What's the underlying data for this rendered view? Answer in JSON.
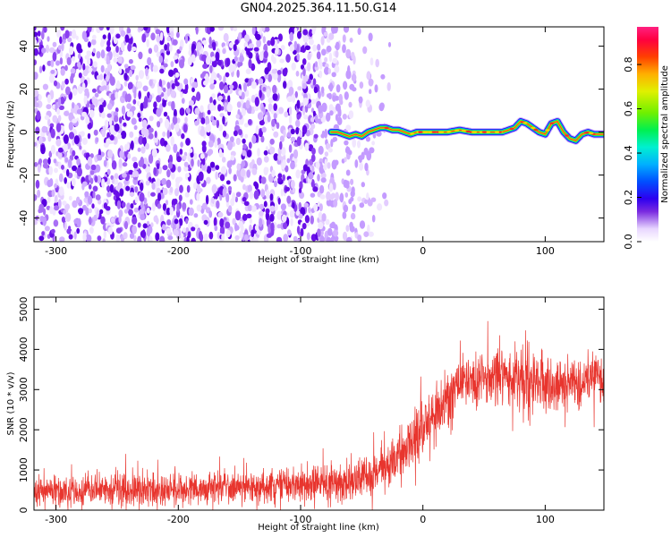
{
  "title": "GN04.2025.364.11.50.G14",
  "chart_data": [
    {
      "type": "heatmap",
      "xlabel": "Height of straight line (km)",
      "ylabel": "Frequency (Hz)",
      "xlim": [
        -318,
        148
      ],
      "ylim": [
        -51,
        49
      ],
      "xticks": [
        -300,
        -200,
        -100,
        0,
        100
      ],
      "xtick_labels": [
        "-300",
        "-200",
        "-100",
        "0",
        "100"
      ],
      "yticks": [
        -40,
        -20,
        0,
        20,
        40
      ],
      "ytick_labels": [
        "-40",
        "-20",
        "0",
        "20",
        "40"
      ],
      "colorbar": {
        "label": "Normalized spectral amplitude",
        "range": [
          0,
          0.97
        ],
        "ticks": [
          0.0,
          0.2,
          0.4,
          0.6,
          0.8
        ],
        "tick_labels": [
          "0.0",
          "0.2",
          "0.4",
          "0.6",
          "0.8"
        ]
      },
      "ridge": {
        "description_x": [
          -75,
          -70,
          -65,
          -60,
          -55,
          -50,
          -45,
          -40,
          -35,
          -30,
          -25,
          -20,
          -15,
          -10,
          -5,
          0,
          10,
          20,
          30,
          40,
          50,
          60,
          65,
          70,
          75,
          80,
          85,
          90,
          95,
          100,
          105,
          110,
          115,
          120,
          125,
          130,
          135,
          140,
          148
        ],
        "frequency": [
          0,
          0,
          -1,
          -2,
          -1,
          -2,
          0,
          1,
          2,
          2,
          1,
          1,
          0,
          -1,
          0,
          0,
          0,
          0,
          1,
          0,
          0,
          0,
          0,
          1,
          2,
          5,
          4,
          2,
          0,
          -1,
          4,
          5,
          0,
          -3,
          -4,
          -1,
          0,
          -1,
          -1
        ],
        "peak_amplitude": 0.97
      },
      "noise_region_x": [
        -318,
        -40
      ]
    },
    {
      "type": "line",
      "xlabel": "Height of straight line (km)",
      "ylabel": "SNR (10 * v/v)",
      "xlim": [
        -318,
        148
      ],
      "ylim": [
        0,
        5300
      ],
      "xticks": [
        -300,
        -200,
        -100,
        0,
        100
      ],
      "xtick_labels": [
        "-300",
        "-200",
        "-100",
        "0",
        "100"
      ],
      "yticks": [
        0,
        1000,
        2000,
        3000,
        4000,
        5000
      ],
      "ytick_labels": [
        "0",
        "1000",
        "2000",
        "3000",
        "4000",
        "5000"
      ],
      "color": "#e8352e",
      "mean_x": [
        -318,
        -250,
        -200,
        -150,
        -100,
        -60,
        -40,
        -20,
        0,
        20,
        40,
        60,
        80,
        100,
        120,
        148
      ],
      "mean_y": [
        450,
        480,
        520,
        580,
        620,
        700,
        850,
        1300,
        2000,
        2900,
        3250,
        3300,
        3200,
        3150,
        3150,
        3200
      ],
      "spread_x": [
        -318,
        -100,
        -40,
        0,
        40,
        148
      ],
      "spread_y": [
        350,
        400,
        500,
        700,
        650,
        650
      ]
    }
  ]
}
